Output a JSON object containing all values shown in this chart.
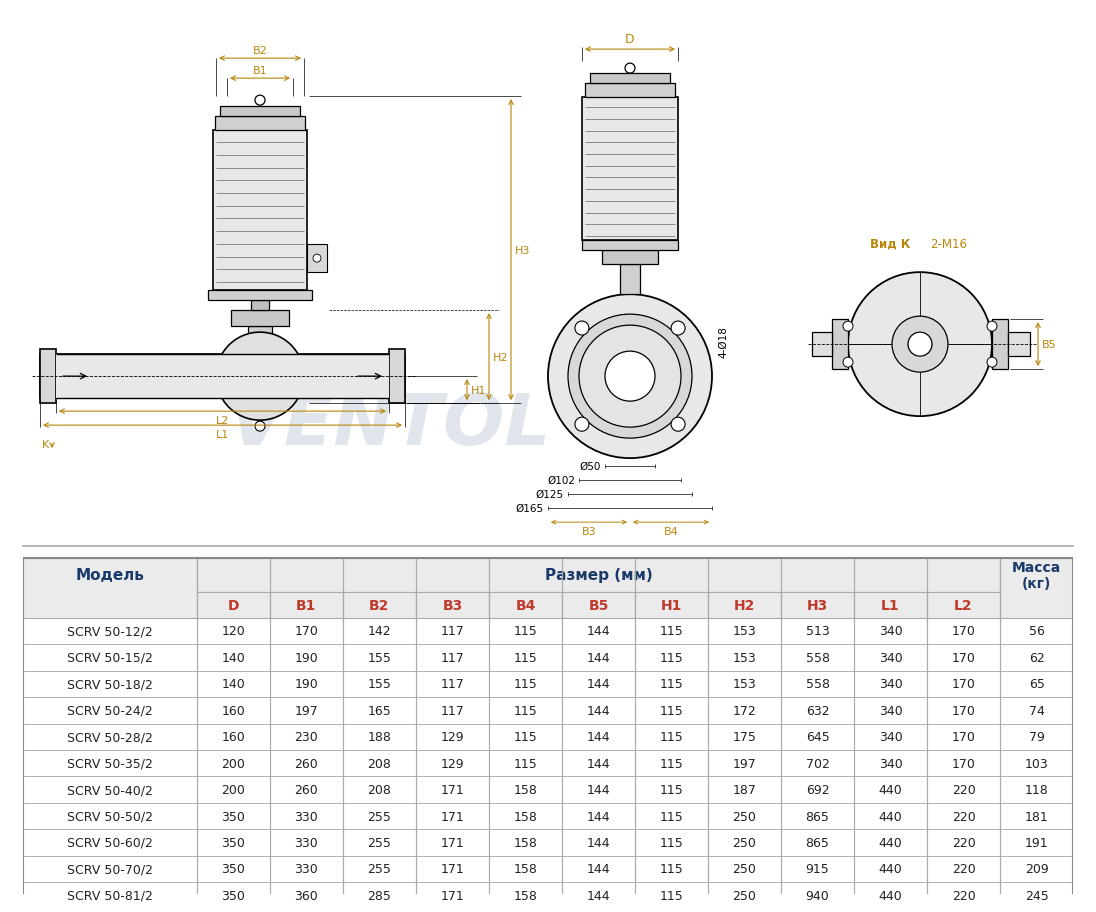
{
  "table_headers": [
    "Модель",
    "D",
    "B1",
    "B2",
    "B3",
    "B4",
    "B5",
    "H1",
    "H2",
    "H3",
    "L1",
    "L2",
    "Масса\n(кг)"
  ],
  "size_header": "Размер (мм)",
  "rows": [
    [
      "SCRV 50-12/2",
      "120",
      "170",
      "142",
      "117",
      "115",
      "144",
      "115",
      "153",
      "513",
      "340",
      "170",
      "56"
    ],
    [
      "SCRV 50-15/2",
      "140",
      "190",
      "155",
      "117",
      "115",
      "144",
      "115",
      "153",
      "558",
      "340",
      "170",
      "62"
    ],
    [
      "SCRV 50-18/2",
      "140",
      "190",
      "155",
      "117",
      "115",
      "144",
      "115",
      "153",
      "558",
      "340",
      "170",
      "65"
    ],
    [
      "SCRV 50-24/2",
      "160",
      "197",
      "165",
      "117",
      "115",
      "144",
      "115",
      "172",
      "632",
      "340",
      "170",
      "74"
    ],
    [
      "SCRV 50-28/2",
      "160",
      "230",
      "188",
      "129",
      "115",
      "144",
      "115",
      "175",
      "645",
      "340",
      "170",
      "79"
    ],
    [
      "SCRV 50-35/2",
      "200",
      "260",
      "208",
      "129",
      "115",
      "144",
      "115",
      "197",
      "702",
      "340",
      "170",
      "103"
    ],
    [
      "SCRV 50-40/2",
      "200",
      "260",
      "208",
      "171",
      "158",
      "144",
      "115",
      "187",
      "692",
      "440",
      "220",
      "118"
    ],
    [
      "SCRV 50-50/2",
      "350",
      "330",
      "255",
      "171",
      "158",
      "144",
      "115",
      "250",
      "865",
      "440",
      "220",
      "181"
    ],
    [
      "SCRV 50-60/2",
      "350",
      "330",
      "255",
      "171",
      "158",
      "144",
      "115",
      "250",
      "865",
      "440",
      "220",
      "191"
    ],
    [
      "SCRV 50-70/2",
      "350",
      "330",
      "255",
      "171",
      "158",
      "144",
      "115",
      "250",
      "915",
      "440",
      "220",
      "209"
    ],
    [
      "SCRV 50-81/2",
      "350",
      "360",
      "285",
      "171",
      "158",
      "144",
      "115",
      "250",
      "940",
      "440",
      "220",
      "245"
    ]
  ],
  "header_bg": "#ebebeb",
  "border_color": "#aaaaaa",
  "header_red_color": "#c0392b",
  "header_blue_color": "#1a3a6a",
  "model_text_color": "#222222",
  "value_text_color": "#222222",
  "orange_color": "#b8860b",
  "dim_color": "#222222",
  "watermark_color": "#cdd5e0",
  "line_color": "#222222"
}
